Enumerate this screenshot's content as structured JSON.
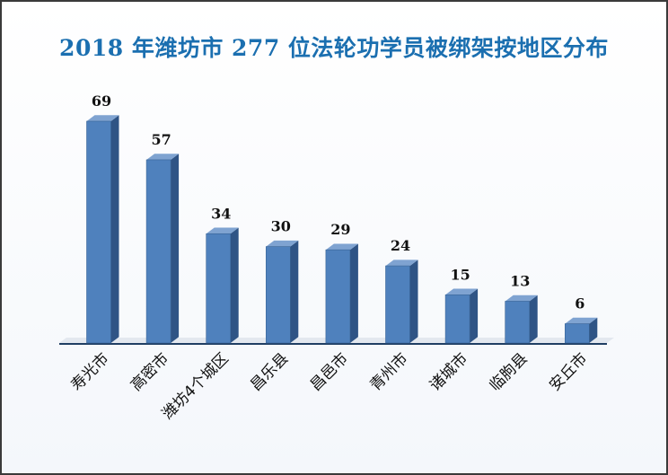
{
  "chart_data": {
    "type": "bar",
    "title": "2018 年潍坊市 277 位法轮功学员被绑架按地区分布",
    "categories": [
      "寿光市",
      "高密市",
      "潍坊4个城区",
      "昌乐县",
      "昌邑市",
      "青州市",
      "诸城市",
      "临朐县",
      "安丘市"
    ],
    "values": [
      69,
      57,
      34,
      30,
      29,
      24,
      15,
      13,
      6
    ],
    "data_labels": [
      "69",
      "57",
      "34",
      "30",
      "29",
      "24",
      "15",
      "13",
      "6"
    ],
    "xlabel": "",
    "ylabel": "",
    "ylim": [
      0,
      69
    ],
    "grid": false,
    "legend": "none",
    "style": "3d-column",
    "colors": {
      "bar_front": "#4f81bd",
      "bar_side": "#2f5485",
      "bar_top": "#7fa3d1",
      "title": "#1b6fb0",
      "axis": "#1f3e63"
    }
  }
}
